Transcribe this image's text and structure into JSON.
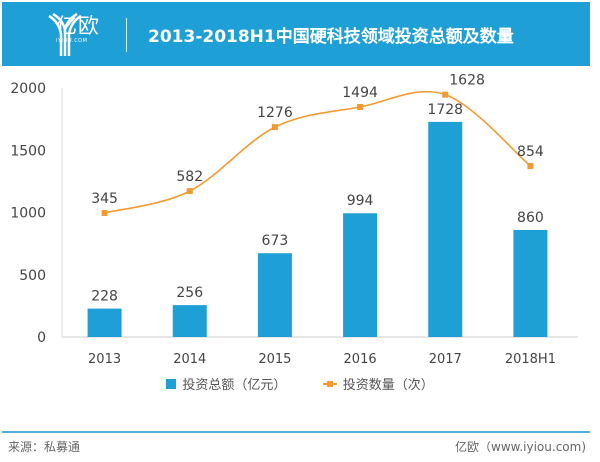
{
  "header": {
    "logo_text": "亿欧",
    "logo_sub": "IYIOU.COM",
    "title": "2013-2018H1中国硬科技领域投资总额及数量"
  },
  "footer": {
    "source": "来源：私募通",
    "credit": "亿欧（www.iyiou.com)"
  },
  "colors": {
    "header": "#1e9fd5",
    "bar": "#1e9fd5",
    "line": "#f39a33"
  },
  "chart_data": {
    "type": "bar+line",
    "categories": [
      "2013",
      "2014",
      "2015",
      "2016",
      "2017",
      "2018H1"
    ],
    "series": [
      {
        "name": "投资总额（亿元）",
        "type": "bar",
        "axis": "left",
        "values": [
          228,
          256,
          673,
          994,
          1728,
          860
        ]
      },
      {
        "name": "投资数量（次）",
        "type": "line",
        "smooth": true,
        "axis": "secondary-hidden",
        "values": [
          345,
          582,
          1276,
          1494,
          1628,
          854
        ]
      }
    ],
    "ylim": [
      0,
      2000
    ],
    "yticks": [
      "0",
      "500",
      "1000",
      "1500",
      "2000"
    ],
    "y2lim": [
      -1000,
      1700
    ],
    "grid": false,
    "legend": "bottom"
  }
}
